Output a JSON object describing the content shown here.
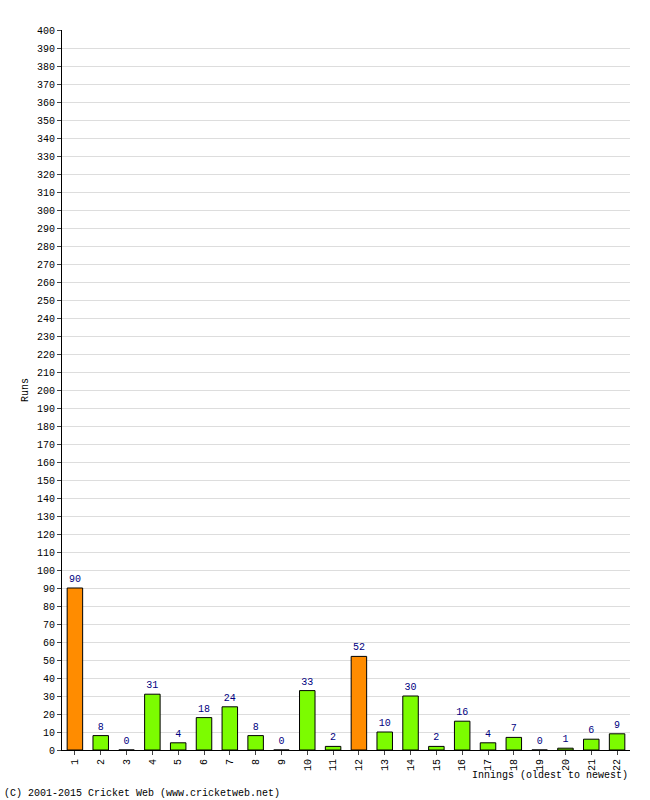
{
  "chart_data": {
    "type": "bar",
    "categories": [
      "1",
      "2",
      "3",
      "4",
      "5",
      "6",
      "7",
      "8",
      "9",
      "10",
      "11",
      "12",
      "13",
      "14",
      "15",
      "16",
      "17",
      "18",
      "19",
      "20",
      "21",
      "22"
    ],
    "values": [
      90,
      8,
      0,
      31,
      4,
      18,
      24,
      8,
      0,
      33,
      2,
      52,
      10,
      30,
      2,
      16,
      4,
      7,
      0,
      1,
      6,
      9
    ],
    "colors": [
      "#ff8c00",
      "#7cfc00",
      "#7cfc00",
      "#7cfc00",
      "#7cfc00",
      "#7cfc00",
      "#7cfc00",
      "#7cfc00",
      "#7cfc00",
      "#7cfc00",
      "#7cfc00",
      "#ff8c00",
      "#7cfc00",
      "#7cfc00",
      "#7cfc00",
      "#7cfc00",
      "#7cfc00",
      "#7cfc00",
      "#7cfc00",
      "#7cfc00",
      "#7cfc00",
      "#7cfc00"
    ],
    "x_label": "Innings (oldest to newest)",
    "y_label": "Runs",
    "annotations": [
      "(C) 2001-2015 Cricket Web (www.cricketweb.net)"
    ],
    "ylim": [
      0,
      400
    ],
    "yticks": [
      0,
      10,
      20,
      30,
      40,
      50,
      60,
      70,
      80,
      90,
      100,
      110,
      120,
      130,
      140,
      150,
      160,
      170,
      180,
      190,
      200,
      210,
      220,
      230,
      240,
      250,
      260,
      270,
      280,
      290,
      300,
      310,
      320,
      330,
      340,
      350,
      360,
      370,
      380,
      390,
      400
    ],
    "grid": true,
    "data_labels": true
  }
}
